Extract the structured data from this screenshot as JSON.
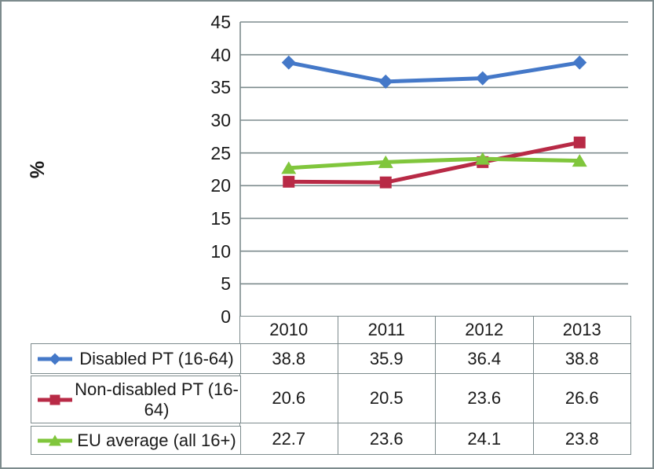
{
  "colors": {
    "frame_border": "#7d8b8d",
    "gridline": "#7d8b8d",
    "text": "#1a1a1a"
  },
  "chart_data": {
    "type": "line",
    "title": "",
    "xlabel": "",
    "ylabel": "%",
    "ylim": [
      0,
      45
    ],
    "ytick_interval": 5,
    "yticks": [
      45,
      40,
      35,
      30,
      25,
      20,
      15,
      10,
      5,
      0
    ],
    "grid": "horizontal",
    "legend_position": "bottom-left-table",
    "categories": [
      "2010",
      "2011",
      "2012",
      "2013"
    ],
    "series": [
      {
        "name": "Disabled PT (16-64)",
        "marker": "diamond",
        "color": "#4478c8",
        "values": [
          38.8,
          35.9,
          36.4,
          38.8
        ]
      },
      {
        "name": "Non-disabled PT (16-64)",
        "marker": "square",
        "color": "#b82a46",
        "values": [
          20.6,
          20.5,
          23.6,
          26.6
        ]
      },
      {
        "name": "EU average (all 16+)",
        "marker": "triangle",
        "color": "#80c63c",
        "values": [
          22.7,
          23.6,
          24.1,
          23.8
        ]
      }
    ]
  }
}
